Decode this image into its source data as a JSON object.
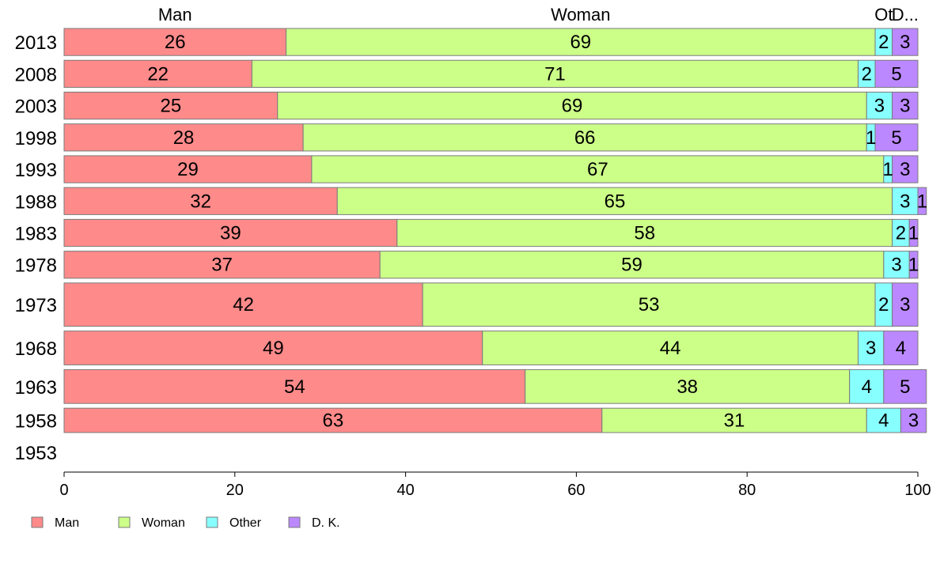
{
  "chart_data": {
    "type": "bar",
    "orientation": "horizontal",
    "stacked": true,
    "categories": [
      "2013",
      "2008",
      "2003",
      "1998",
      "1993",
      "1988",
      "1983",
      "1978",
      "1973",
      "1968",
      "1963",
      "1958",
      "1953"
    ],
    "series": [
      {
        "name": "Man",
        "color": "#ff8a8a",
        "values": [
          26,
          22,
          25,
          28,
          29,
          32,
          39,
          37,
          42,
          49,
          54,
          63,
          null
        ]
      },
      {
        "name": "Woman",
        "color": "#ccff88",
        "values": [
          69,
          71,
          69,
          66,
          67,
          65,
          58,
          59,
          53,
          44,
          38,
          31,
          null
        ]
      },
      {
        "name": "Other",
        "color": "#88ffff",
        "values": [
          2,
          2,
          3,
          1,
          1,
          3,
          2,
          3,
          2,
          3,
          4,
          4,
          null
        ]
      },
      {
        "name": "D. K.",
        "color": "#bb88ff",
        "values": [
          3,
          5,
          3,
          5,
          3,
          1,
          1,
          1,
          3,
          4,
          5,
          3,
          null
        ]
      }
    ],
    "bar_weights": [
      1,
      1,
      1,
      1,
      1,
      1,
      1,
      1,
      1.6,
      1.25,
      1.25,
      0.9,
      0
    ],
    "top_labels": [
      "Man",
      "Woman",
      "Ot",
      "D..."
    ],
    "xlim": [
      0,
      100
    ],
    "xticks": [
      0,
      20,
      40,
      60,
      80,
      100
    ],
    "legend": [
      "Man",
      "Woman",
      "Other",
      "D. K."
    ],
    "legend_position": "bottom-left",
    "grid": false
  }
}
